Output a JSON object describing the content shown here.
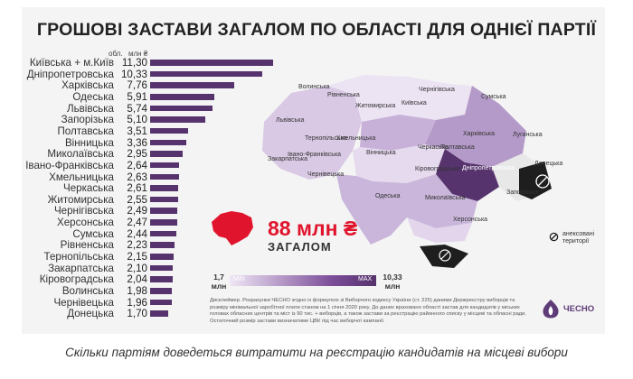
{
  "title": "ГРОШОВІ ЗАСТАВИ ЗАГАЛОМ ПО ОБЛАСТІ ДЛЯ ОДНІЄЇ ПАРТІЇ",
  "header": {
    "region": "обл.",
    "unit": "млн ₴"
  },
  "chart_data": {
    "type": "bar",
    "orientation": "horizontal",
    "title": "ГРОШОВІ ЗАСТАВИ ЗАГАЛОМ ПО ОБЛАСТІ ДЛЯ ОДНІЄЇ ПАРТІЇ",
    "xlabel": "млн ₴",
    "ylabel": "обл.",
    "categories": [
      "Київська + м.Київ",
      "Дніпропетровська",
      "Харківська",
      "Одеська",
      "Львівська",
      "Запорізька",
      "Полтавська",
      "Вінницька",
      "Миколаївська",
      "Івано-Франківська",
      "Хмельницька",
      "Черкаська",
      "Житомирська",
      "Чернігівська",
      "Херсонська",
      "Сумська",
      "Рівненська",
      "Тернопільська",
      "Закарпатська",
      "Кіровоградська",
      "Волинська",
      "Чернівецька",
      "Донецька"
    ],
    "values": [
      11.3,
      10.33,
      7.76,
      5.91,
      5.74,
      5.1,
      3.51,
      3.36,
      2.95,
      2.64,
      2.63,
      2.61,
      2.55,
      2.49,
      2.47,
      2.44,
      2.23,
      2.15,
      2.1,
      2.04,
      1.98,
      1.96,
      1.7
    ],
    "value_labels": [
      "11,30",
      "10,33",
      "7,76",
      "5,91",
      "5,74",
      "5,10",
      "3,51",
      "3,36",
      "2,95",
      "2,64",
      "2,63",
      "2,61",
      "2,55",
      "2,49",
      "2,47",
      "2,44",
      "2,23",
      "2,15",
      "2,10",
      "2,04",
      "1,98",
      "1,96",
      "1,70"
    ],
    "xlim": [
      0,
      11.3
    ],
    "grid": false,
    "bar_color": "#56336d"
  },
  "total": {
    "value": "88 млн ₴",
    "label": "ЗАГАЛОМ"
  },
  "gradient_legend": {
    "min_value": "1,7\nмлн",
    "max_value": "10,33\nмлн",
    "min_label": "MIN",
    "max_label": "MAX"
  },
  "map_labels": [
    "Волинська",
    "Рівненська",
    "Житомирська",
    "Чернігівська",
    "Сумська",
    "Львівська",
    "Тернопільська",
    "Хмельницька",
    "Київська",
    "Полтавська",
    "Харківська",
    "Закарпатська",
    "Івано-Франківська",
    "Чернівецька",
    "Вінницька",
    "Черкаська",
    "Луганська",
    "Донецька",
    "Кіровоградська",
    "Дніпропетровська",
    "Одеська",
    "Миколаївська",
    "Запорізька",
    "Херсонська"
  ],
  "occupied_legend": "анексовані\nтериторії",
  "disclaimer": "Дисклеймер. Розрахунки ЧЕСНО згідно із формулою зі Виборчого кодексу України (ст. 225) даними Держреєстру виборців та розміру мінімальної заробітної плати станом на 1 січня 2020 року. До даних враховано області застав для кандидатів у міських головах обласних центрів та міст із 90 тис. + виборців, а також застави за реєстрацію  районного списку у місцеві та обласні ради. Остаточний розмір застави визначатиме ЦВК під час виборчої кампанії.",
  "logo_text": "ЧЕСНО",
  "caption": "Скільки партіям доведеться витратити на реєстрацію кандидатів на місцеві вибори",
  "colors": {
    "bar": "#56336d",
    "total": "#e0152d",
    "map_light": "#e8dcef",
    "map_dark": "#56336d",
    "occupied": "#1e1e1e"
  }
}
